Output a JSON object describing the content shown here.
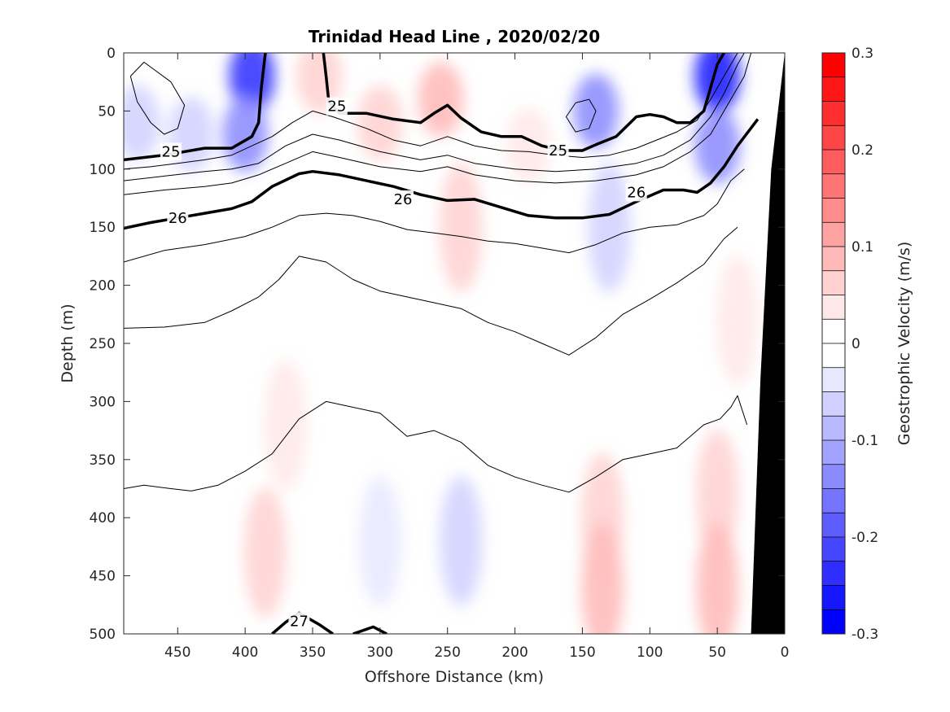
{
  "chart_data": {
    "type": "contour",
    "title": "Trinidad Head Line , 2020/02/20",
    "xlabel": "Offshore Distance (km)",
    "ylabel": "Depth (m)",
    "colorbar_label": "Geostrophic Velocity (m/s)",
    "xlim": [
      490,
      0
    ],
    "ylim": [
      0,
      500
    ],
    "x_reversed": true,
    "y_reversed": true,
    "x_ticks": [
      450,
      400,
      350,
      300,
      250,
      200,
      150,
      100,
      50,
      0
    ],
    "y_ticks": [
      0,
      50,
      100,
      150,
      200,
      250,
      300,
      350,
      400,
      450,
      500
    ],
    "colorbar_range": [
      -0.3,
      0.3
    ],
    "colorbar_ticks": [
      0.3,
      0.2,
      0.1,
      0,
      -0.1,
      -0.2,
      -0.3
    ],
    "colorbar_levels": 24,
    "colors": {
      "positive": "#ff0000",
      "negative": "#0000ff",
      "zero": "#ffffff",
      "topography": "#000000",
      "contour": "#000000"
    },
    "velocity_patches": [
      {
        "x": 480,
        "y": 60,
        "value": -0.06
      },
      {
        "x": 440,
        "y": 70,
        "value": -0.05
      },
      {
        "x": 395,
        "y": 20,
        "value": -0.24
      },
      {
        "x": 400,
        "y": 70,
        "value": -0.14
      },
      {
        "x": 345,
        "y": 20,
        "value": 0.05
      },
      {
        "x": 300,
        "y": 60,
        "value": 0.07
      },
      {
        "x": 255,
        "y": 40,
        "value": 0.08
      },
      {
        "x": 240,
        "y": 150,
        "value": 0.05
      },
      {
        "x": 190,
        "y": 80,
        "value": 0.03
      },
      {
        "x": 140,
        "y": 50,
        "value": -0.13
      },
      {
        "x": 130,
        "y": 150,
        "value": -0.06
      },
      {
        "x": 50,
        "y": 20,
        "value": -0.25
      },
      {
        "x": 50,
        "y": 80,
        "value": -0.13
      },
      {
        "x": 35,
        "y": 230,
        "value": 0.04
      },
      {
        "x": 370,
        "y": 320,
        "value": 0.04
      },
      {
        "x": 385,
        "y": 430,
        "value": 0.07
      },
      {
        "x": 300,
        "y": 420,
        "value": -0.04
      },
      {
        "x": 240,
        "y": 420,
        "value": -0.05
      },
      {
        "x": 135,
        "y": 400,
        "value": 0.05
      },
      {
        "x": 135,
        "y": 460,
        "value": 0.08
      },
      {
        "x": 50,
        "y": 380,
        "value": 0.05
      },
      {
        "x": 50,
        "y": 460,
        "value": 0.09
      }
    ],
    "isopycnals": [
      {
        "label": "25",
        "bold": true,
        "x": [
          490,
          460,
          430,
          410,
          395,
          390,
          388,
          385
        ],
        "y": [
          92,
          88,
          82,
          82,
          72,
          60,
          30,
          0
        ]
      },
      {
        "label": "25",
        "bold": true,
        "x": [
          342,
          340,
          338,
          330,
          310,
          290,
          270,
          260,
          250,
          240,
          225,
          210,
          195,
          180,
          165,
          150,
          140,
          125,
          110,
          100,
          90,
          80,
          70,
          60,
          55,
          50,
          45
        ],
        "y": [
          0,
          20,
          42,
          52,
          52,
          57,
          60,
          52,
          45,
          56,
          68,
          72,
          72,
          80,
          84,
          84,
          79,
          72,
          55,
          53,
          55,
          60,
          60,
          50,
          30,
          10,
          0
        ]
      },
      {
        "label": "",
        "bold": false,
        "x": [
          490,
          470,
          450,
          430,
          410,
          395,
          380,
          365,
          350,
          335,
          310,
          290,
          270,
          250,
          230,
          210,
          190,
          170,
          150,
          130,
          110,
          95,
          80,
          65,
          55,
          45,
          35
        ],
        "y": [
          100,
          98,
          95,
          92,
          88,
          80,
          72,
          60,
          50,
          55,
          65,
          75,
          80,
          72,
          80,
          84,
          85,
          88,
          90,
          88,
          82,
          75,
          68,
          58,
          40,
          20,
          0
        ]
      },
      {
        "label": "",
        "bold": false,
        "x": [
          490,
          460,
          430,
          410,
          390,
          370,
          350,
          330,
          300,
          270,
          250,
          230,
          200,
          170,
          140,
          110,
          90,
          70,
          55,
          45,
          35,
          30
        ],
        "y": [
          110,
          106,
          102,
          100,
          95,
          80,
          70,
          75,
          85,
          92,
          88,
          95,
          100,
          102,
          100,
          95,
          88,
          75,
          55,
          35,
          10,
          0
        ]
      },
      {
        "label": "",
        "bold": false,
        "x": [
          490,
          460,
          430,
          410,
          390,
          370,
          350,
          330,
          300,
          270,
          250,
          230,
          200,
          170,
          140,
          110,
          90,
          70,
          55,
          45,
          30,
          25
        ],
        "y": [
          122,
          118,
          115,
          112,
          105,
          95,
          85,
          90,
          98,
          102,
          98,
          105,
          110,
          112,
          110,
          105,
          98,
          85,
          70,
          50,
          20,
          0
        ]
      },
      {
        "label": "26",
        "bold": true,
        "x": [
          490,
          470,
          450,
          430,
          410,
          395,
          380,
          360,
          350,
          330,
          310,
          290,
          270,
          250,
          230,
          210,
          190,
          170,
          150,
          130,
          110,
          90,
          75,
          65,
          55,
          45,
          35,
          20
        ],
        "y": [
          151,
          146,
          142,
          138,
          134,
          128,
          115,
          104,
          102,
          105,
          110,
          115,
          122,
          127,
          126,
          133,
          140,
          142,
          142,
          139,
          128,
          118,
          118,
          120,
          112,
          98,
          80,
          57
        ]
      },
      {
        "label": "",
        "bold": false,
        "x": [
          490,
          460,
          430,
          400,
          380,
          360,
          340,
          320,
          300,
          280,
          260,
          240,
          220,
          200,
          180,
          160,
          140,
          120,
          100,
          80,
          60,
          50,
          40,
          30
        ],
        "y": [
          180,
          170,
          165,
          158,
          150,
          140,
          138,
          140,
          145,
          152,
          155,
          158,
          162,
          164,
          168,
          172,
          165,
          155,
          150,
          148,
          140,
          130,
          110,
          100
        ]
      },
      {
        "label": "",
        "bold": false,
        "x": [
          490,
          460,
          430,
          410,
          390,
          375,
          360,
          340,
          320,
          300,
          280,
          260,
          240,
          220,
          200,
          180,
          160,
          140,
          120,
          100,
          80,
          60,
          45,
          35
        ],
        "y": [
          237,
          236,
          232,
          222,
          210,
          195,
          175,
          180,
          195,
          205,
          210,
          215,
          220,
          232,
          240,
          250,
          260,
          245,
          225,
          212,
          198,
          182,
          160,
          150
        ]
      },
      {
        "label": "",
        "bold": false,
        "x": [
          490,
          475,
          455,
          440,
          420,
          400,
          380,
          360,
          340,
          320,
          300,
          280,
          260,
          240,
          220,
          200,
          180,
          160,
          140,
          120,
          100,
          80,
          60,
          48,
          40,
          35,
          28
        ],
        "y": [
          375,
          372,
          375,
          377,
          372,
          360,
          345,
          315,
          300,
          305,
          310,
          330,
          325,
          335,
          355,
          365,
          372,
          378,
          365,
          350,
          345,
          340,
          320,
          315,
          305,
          295,
          320
        ]
      },
      {
        "label": "27",
        "bold": true,
        "x": [
          380,
          370,
          360,
          345,
          335
        ],
        "y": [
          500,
          490,
          482,
          492,
          500
        ]
      },
      {
        "label": "",
        "bold": true,
        "x": [
          320,
          305,
          295
        ],
        "y": [
          500,
          494,
          500
        ]
      },
      {
        "label": "",
        "bold": false,
        "x": [
          485,
          475,
          455,
          445,
          450,
          460,
          470,
          480,
          485
        ],
        "y": [
          20,
          8,
          25,
          45,
          65,
          70,
          60,
          42,
          20
        ]
      },
      {
        "label": "",
        "bold": false,
        "x": [
          155,
          145,
          140,
          145,
          155,
          162,
          155
        ],
        "y": [
          43,
          40,
          50,
          65,
          68,
          55,
          43
        ]
      }
    ],
    "contour_labels": [
      {
        "text": "25",
        "x": 455,
        "y": 85
      },
      {
        "text": "25",
        "x": 332,
        "y": 46
      },
      {
        "text": "25",
        "x": 168,
        "y": 84
      },
      {
        "text": "26",
        "x": 450,
        "y": 142
      },
      {
        "text": "26",
        "x": 283,
        "y": 126
      },
      {
        "text": "26",
        "x": 110,
        "y": 120
      },
      {
        "text": "27",
        "x": 360,
        "y": 489
      }
    ],
    "topography": {
      "x": [
        25,
        18,
        10,
        0,
        0,
        25
      ],
      "y": [
        500,
        280,
        100,
        0,
        500,
        500
      ]
    }
  }
}
